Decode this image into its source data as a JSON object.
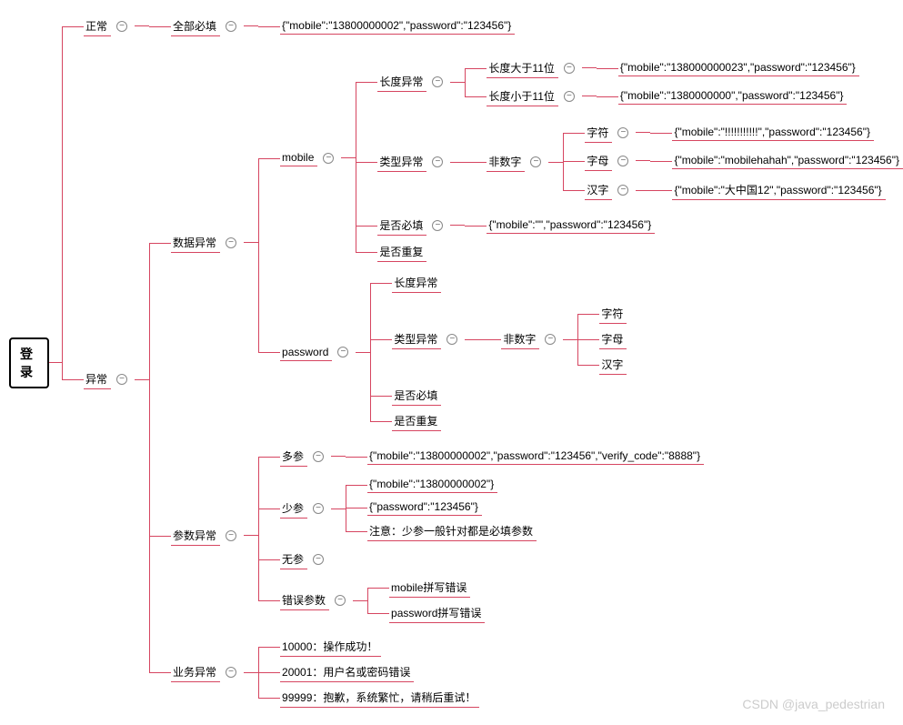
{
  "style": {
    "connector_color": "#d64560",
    "node_underline_color": "#d64560",
    "font_size": 12,
    "root_border": "#000000",
    "background": "#ffffff",
    "toggle_border": "#888888",
    "toggle_color": "#666666"
  },
  "watermark": "CSDN @java_pedestrian",
  "root": "登录",
  "tree": [
    {
      "label": "正常",
      "toggle": true,
      "children": [
        {
          "label": "全部必填",
          "toggle": true,
          "children": [
            {
              "label": "{\"mobile\":\"13800000002\",\"password\":\"123456\"}"
            }
          ]
        }
      ]
    },
    {
      "label": "异常",
      "toggle": true,
      "children": [
        {
          "label": "数据异常",
          "toggle": true,
          "children": [
            {
              "label": "mobile",
              "toggle": true,
              "children": [
                {
                  "label": "长度异常",
                  "toggle": true,
                  "children": [
                    {
                      "label": "长度大于11位",
                      "toggle": true,
                      "children": [
                        {
                          "label": "{\"mobile\":\"138000000023\",\"password\":\"123456\"}"
                        }
                      ]
                    },
                    {
                      "label": "长度小于11位",
                      "toggle": true,
                      "children": [
                        {
                          "label": "{\"mobile\":\"1380000000\",\"password\":\"123456\"}"
                        }
                      ]
                    }
                  ]
                },
                {
                  "label": "类型异常",
                  "toggle": true,
                  "children": [
                    {
                      "label": "非数字",
                      "toggle": true,
                      "children": [
                        {
                          "label": "字符",
                          "toggle": true,
                          "children": [
                            {
                              "label": "{\"mobile\":\"!!!!!!!!!!!\",\"password\":\"123456\"}"
                            }
                          ]
                        },
                        {
                          "label": "字母",
                          "toggle": true,
                          "children": [
                            {
                              "label": "{\"mobile\":\"mobilehahah\",\"password\":\"123456\"}"
                            }
                          ]
                        },
                        {
                          "label": "汉字",
                          "toggle": true,
                          "children": [
                            {
                              "label": "{\"mobile\":\"大中国12\",\"password\":\"123456\"}"
                            }
                          ]
                        }
                      ]
                    }
                  ]
                },
                {
                  "label": "是否必填",
                  "toggle": true,
                  "children": [
                    {
                      "label": "{\"mobile\":\"\",\"password\":\"123456\"}"
                    }
                  ]
                },
                {
                  "label": "是否重复"
                }
              ]
            },
            {
              "label": "password",
              "toggle": true,
              "children": [
                {
                  "label": "长度异常"
                },
                {
                  "label": "类型异常",
                  "toggle": true,
                  "children": [
                    {
                      "label": "非数字",
                      "toggle": true,
                      "children": [
                        {
                          "label": "字符"
                        },
                        {
                          "label": "字母"
                        },
                        {
                          "label": "汉字"
                        }
                      ]
                    }
                  ]
                },
                {
                  "label": "是否必填"
                },
                {
                  "label": "是否重复"
                }
              ]
            }
          ]
        },
        {
          "label": "参数异常",
          "toggle": true,
          "children": [
            {
              "label": "多参",
              "toggle": true,
              "children": [
                {
                  "label": "{\"mobile\":\"13800000002\",\"password\":\"123456\",\"verify_code\":\"8888\"}"
                }
              ]
            },
            {
              "label": "少参",
              "toggle": true,
              "children": [
                {
                  "label": "{\"mobile\":\"13800000002\"}"
                },
                {
                  "label": "{\"password\":\"123456\"}"
                },
                {
                  "label": "注意：少参一般针对都是必填参数"
                }
              ]
            },
            {
              "label": "无参",
              "toggle": true
            },
            {
              "label": "错误参数",
              "toggle": true,
              "children": [
                {
                  "label": "mobile拼写错误"
                },
                {
                  "label": "password拼写错误"
                }
              ]
            }
          ]
        },
        {
          "label": "业务异常",
          "toggle": true,
          "children": [
            {
              "label": "10000：操作成功！"
            },
            {
              "label": "20001：用户名或密码错误"
            },
            {
              "label": "99999：抱歉，系统繁忙，请稍后重试！"
            }
          ]
        }
      ]
    }
  ]
}
